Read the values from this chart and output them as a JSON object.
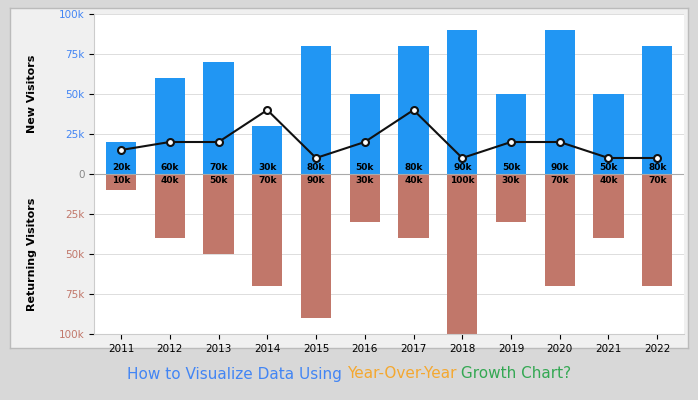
{
  "years": [
    2011,
    2012,
    2013,
    2014,
    2015,
    2016,
    2017,
    2018,
    2019,
    2020,
    2021,
    2022
  ],
  "new_visitors": [
    20,
    60,
    70,
    30,
    80,
    50,
    80,
    90,
    50,
    90,
    50,
    80
  ],
  "returning_visitors": [
    10,
    40,
    50,
    70,
    90,
    30,
    40,
    100,
    30,
    70,
    40,
    70
  ],
  "line_values": [
    15,
    20,
    20,
    40,
    10,
    20,
    40,
    10,
    20,
    20,
    10,
    10
  ],
  "bar_color_new": "#2196F3",
  "bar_color_returning": "#C1776A",
  "line_color": "#111111",
  "dot_facecolor": "white",
  "ylabel_new": "New Visitors",
  "ylabel_returning": "Returning Visitors",
  "ytick_color_positive": "#4285F4",
  "ytick_color_negative": "#C1776A",
  "ytick_color_zero": "#888888",
  "title_part1": "How to Visualize Data Using ",
  "title_part2": "Year-Over-Year",
  "title_part3": " Growth Chart?",
  "title_color1": "#4285F4",
  "title_color2": "#F4A830",
  "title_color3": "#34A853",
  "outer_bg": "#d8d8d8",
  "inner_bg": "#f0f0f0",
  "plot_bg_color": "#ffffff"
}
